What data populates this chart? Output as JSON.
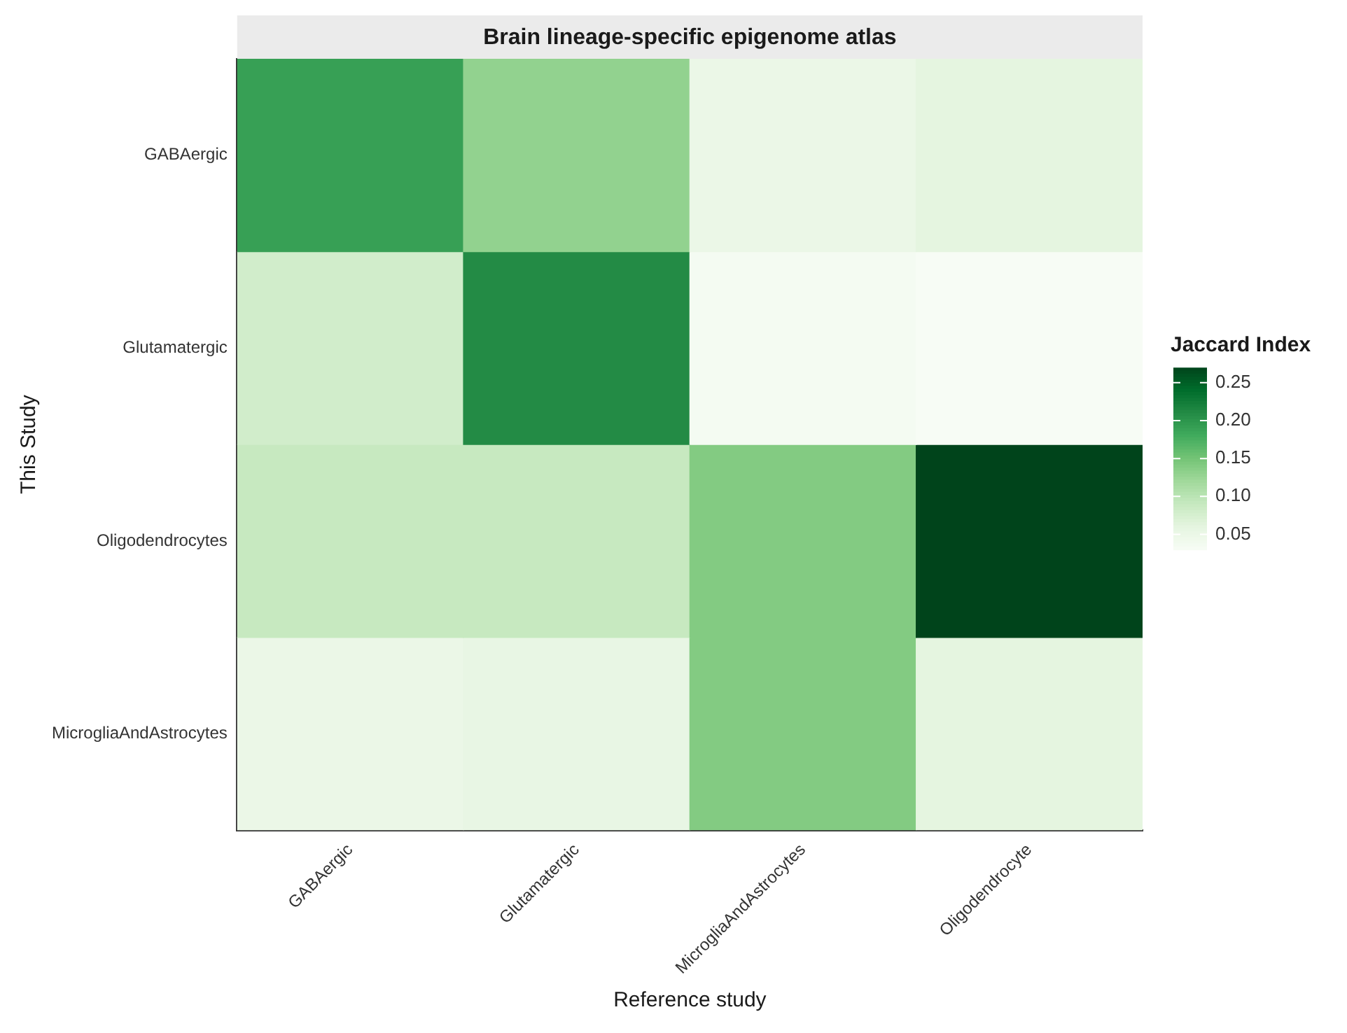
{
  "chart_data": {
    "type": "heatmap",
    "title": "Brain lineage-specific epigenome atlas",
    "xlabel": "Reference study",
    "ylabel": "This Study",
    "clabel": "Jaccard Index",
    "categories": [
      "GABAergic",
      "Glutamatergic",
      "MicrogliaAndAstrocytes",
      "Oligodendrocyte"
    ],
    "y_categories": [
      "GABAergic",
      "Glutamatergic",
      "Oligodendrocytes",
      "MicrogliaAndAstrocytes"
    ],
    "cells": [
      [
        0.19,
        0.13,
        0.05,
        0.06
      ],
      [
        0.08,
        0.21,
        0.035,
        0.03
      ],
      [
        0.09,
        0.09,
        0.14,
        0.27
      ],
      [
        0.05,
        0.055,
        0.14,
        0.06
      ]
    ],
    "clim": [
      0.03,
      0.27
    ],
    "cticks": [
      0.05,
      {
        "value": 0.1,
        "label": "0.10"
      },
      0.15,
      {
        "value": 0.2,
        "label": "0.20"
      },
      0.25
    ]
  }
}
